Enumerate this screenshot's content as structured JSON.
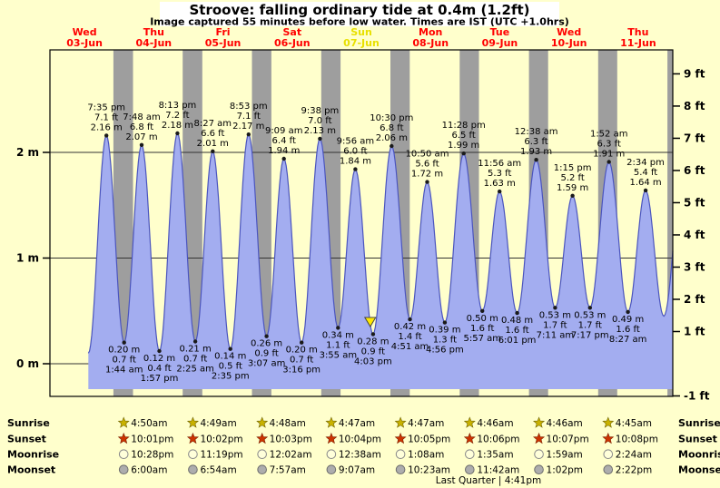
{
  "title": "Stroove: falling  ordinary tide at 0.4m (1.2ft)",
  "subtitle": "Image captured 55 minutes before low water. Times are IST (UTC +1.0hrs)",
  "colors": {
    "background": "#ffffcc",
    "title_box": "#ffffff",
    "night_band": "#9e9e9e",
    "tide_fill": "#a3adf0",
    "tide_stroke": "#4b55be",
    "day_label": "#ff0000",
    "current_day_label": "#e8e000",
    "marker": "#ffe800",
    "sunrise_icon": "#c9b200",
    "sunset_icon": "#cc3300",
    "moonrise_icon": "#ffffda",
    "moonset_icon": "#adadad"
  },
  "chart_data": {
    "type": "area",
    "x_axis": {
      "hours_total": 216,
      "start_day": "Wed 03-Jun 00:00",
      "end_day": "Thu 11-Jun 24:00"
    },
    "days": [
      {
        "name": "Wed",
        "date": "03-Jun",
        "current": false
      },
      {
        "name": "Thu",
        "date": "04-Jun",
        "current": false
      },
      {
        "name": "Fri",
        "date": "05-Jun",
        "current": false
      },
      {
        "name": "Sat",
        "date": "06-Jun",
        "current": false
      },
      {
        "name": "Sun",
        "date": "07-Jun",
        "current": true
      },
      {
        "name": "Mon",
        "date": "08-Jun",
        "current": false
      },
      {
        "name": "Tue",
        "date": "09-Jun",
        "current": false
      },
      {
        "name": "Wed",
        "date": "10-Jun",
        "current": false
      },
      {
        "name": "Thu",
        "date": "11-Jun",
        "current": false
      }
    ],
    "y_axis_left": {
      "unit": "m",
      "ticks": [
        {
          "m": 0,
          "label": "0 m"
        },
        {
          "m": 1,
          "label": "1 m"
        },
        {
          "m": 2,
          "label": "2 m"
        }
      ]
    },
    "y_axis_right": {
      "unit": "ft",
      "ticks": [
        {
          "ft": 9,
          "label": "9 ft"
        },
        {
          "ft": 8,
          "label": "8 ft"
        },
        {
          "ft": 7,
          "label": "7 ft"
        },
        {
          "ft": 6,
          "label": "6 ft"
        },
        {
          "ft": 5,
          "label": "5 ft"
        },
        {
          "ft": 4,
          "label": "4 ft"
        },
        {
          "ft": 3,
          "label": "3 ft"
        },
        {
          "ft": 2,
          "label": "2 ft"
        },
        {
          "ft": 1,
          "label": "1 ft"
        },
        {
          "ft": -1,
          "label": "-1 ft"
        }
      ]
    },
    "fill_bottom_m": -0.24,
    "night_bands": [
      [
        22.02,
        28.83
      ],
      [
        46.03,
        52.82
      ],
      [
        70.05,
        76.8
      ],
      [
        94.07,
        100.78
      ],
      [
        118.08,
        124.78
      ],
      [
        142.1,
        148.77
      ],
      [
        166.12,
        172.77
      ],
      [
        190.13,
        196.75
      ],
      [
        214.13,
        216
      ]
    ],
    "current_marker": {
      "t_hours": 111.1
    },
    "tide_events": [
      {
        "t": 13.33,
        "m": 0.1,
        "type": "low",
        "label": null
      },
      {
        "t": 19.58,
        "m": 2.16,
        "type": "high",
        "label": [
          "7:35 pm",
          "7.1 ft",
          "2.16 m"
        ]
      },
      {
        "t": 25.73,
        "m": 0.2,
        "type": "low",
        "label": [
          "0.20 m",
          "0.7 ft",
          "1:44 am"
        ]
      },
      {
        "t": 31.8,
        "m": 2.07,
        "type": "high",
        "label": [
          "7:48 am",
          "6.8 ft",
          "2.07 m"
        ]
      },
      {
        "t": 37.95,
        "m": 0.12,
        "type": "low",
        "label": [
          "0.12 m",
          "0.4 ft",
          "1:57 pm"
        ]
      },
      {
        "t": 44.22,
        "m": 2.18,
        "type": "high",
        "label": [
          "8:13 pm",
          "7.2 ft",
          "2.18 m"
        ]
      },
      {
        "t": 50.42,
        "m": 0.21,
        "type": "low",
        "label": [
          "0.21 m",
          "0.7 ft",
          "2:25 am"
        ]
      },
      {
        "t": 56.45,
        "m": 2.01,
        "type": "high",
        "label": [
          "8:27 am",
          "6.6 ft",
          "2.01 m"
        ]
      },
      {
        "t": 62.58,
        "m": 0.14,
        "type": "low",
        "label": [
          "0.14 m",
          "0.5 ft",
          "2:35 pm"
        ]
      },
      {
        "t": 68.88,
        "m": 2.17,
        "type": "high",
        "label": [
          "8:53 pm",
          "7.1 ft",
          "2.17 m"
        ]
      },
      {
        "t": 75.12,
        "m": 0.26,
        "type": "low",
        "label": [
          "0.26 m",
          "0.9 ft",
          "3:07 am"
        ]
      },
      {
        "t": 81.15,
        "m": 1.94,
        "type": "high",
        "label": [
          "9:09 am",
          "6.4 ft",
          "1.94 m"
        ]
      },
      {
        "t": 87.27,
        "m": 0.2,
        "type": "low",
        "label": [
          "0.20 m",
          "0.7 ft",
          "3:16 pm"
        ]
      },
      {
        "t": 93.63,
        "m": 2.13,
        "type": "high",
        "label": [
          "9:38 pm",
          "7.0 ft",
          "2.13 m"
        ]
      },
      {
        "t": 99.92,
        "m": 0.34,
        "type": "low",
        "label": [
          "0.34 m",
          "1.1 ft",
          "3:55 am"
        ]
      },
      {
        "t": 105.93,
        "m": 1.84,
        "type": "high",
        "label": [
          "9:56 am",
          "6.0 ft",
          "1.84 m"
        ]
      },
      {
        "t": 112.05,
        "m": 0.28,
        "type": "low",
        "label": [
          "0.28 m",
          "0.9 ft",
          "4:03 pm"
        ]
      },
      {
        "t": 118.5,
        "m": 2.06,
        "type": "high",
        "label": [
          "10:30 pm",
          "6.8 ft",
          "2.06 m"
        ]
      },
      {
        "t": 124.85,
        "m": 0.42,
        "type": "low",
        "label": [
          "0.42 m",
          "1.4 ft",
          "4:51 am"
        ]
      },
      {
        "t": 130.83,
        "m": 1.72,
        "type": "high",
        "label": [
          "10:50 am",
          "5.6 ft",
          "1.72 m"
        ]
      },
      {
        "t": 136.93,
        "m": 0.39,
        "type": "low",
        "label": [
          "0.39 m",
          "1.3 ft",
          "4:56 pm"
        ]
      },
      {
        "t": 143.47,
        "m": 1.99,
        "type": "high",
        "label": [
          "11:28 pm",
          "6.5 ft",
          "1.99 m"
        ]
      },
      {
        "t": 149.95,
        "m": 0.5,
        "type": "low",
        "label": [
          "0.50 m",
          "1.6 ft",
          "5:57 am"
        ]
      },
      {
        "t": 155.93,
        "m": 1.63,
        "type": "high",
        "label": [
          "11:56 am",
          "5.3 ft",
          "1.63 m"
        ]
      },
      {
        "t": 162.02,
        "m": 0.48,
        "type": "low",
        "label": [
          "0.48 m",
          "1.6 ft",
          "6:01 pm"
        ]
      },
      {
        "t": 168.63,
        "m": 1.93,
        "type": "high",
        "label": [
          "12:38 am",
          "6.3 ft",
          "1.93 m"
        ]
      },
      {
        "t": 175.18,
        "m": 0.53,
        "type": "low",
        "label": [
          "0.53 m",
          "1.7 ft",
          "7:11 am"
        ]
      },
      {
        "t": 181.25,
        "m": 1.59,
        "type": "high",
        "label": [
          "1:15 pm",
          "5.2 ft",
          "1.59 m"
        ]
      },
      {
        "t": 187.28,
        "m": 0.53,
        "type": "low",
        "label": [
          "0.53 m",
          "1.7 ft",
          "7:17 pm"
        ]
      },
      {
        "t": 193.87,
        "m": 1.91,
        "type": "high",
        "label": [
          "1:52 am",
          "6.3 ft",
          "1.91 m"
        ]
      },
      {
        "t": 200.45,
        "m": 0.49,
        "type": "low",
        "label": [
          "0.49 m",
          "1.6 ft",
          "8:27 am"
        ]
      },
      {
        "t": 206.57,
        "m": 1.64,
        "type": "high",
        "label": [
          "2:34 pm",
          "5.4 ft",
          "1.64 m"
        ]
      },
      {
        "t": 212.9,
        "m": 0.45,
        "type": "low",
        "label": null
      },
      {
        "t": 219.9,
        "m": 1.95,
        "type": "high",
        "label": null
      }
    ]
  },
  "almanac": {
    "rows": [
      {
        "key": "sunrise",
        "label": "Sunrise",
        "icon": "sunrise-star-icon",
        "times": [
          "4:50am",
          "4:49am",
          "4:48am",
          "4:47am",
          "4:47am",
          "4:46am",
          "4:46am",
          "4:45am"
        ]
      },
      {
        "key": "sunset",
        "label": "Sunset",
        "icon": "sunset-star-icon",
        "times": [
          "10:01pm",
          "10:02pm",
          "10:03pm",
          "10:04pm",
          "10:05pm",
          "10:06pm",
          "10:07pm",
          "10:08pm"
        ]
      },
      {
        "key": "moonrise",
        "label": "Moonrise",
        "icon": "moonrise-circle-icon",
        "times": [
          "10:28pm",
          "11:19pm",
          "12:02am",
          "12:38am",
          "1:08am",
          "1:35am",
          "1:59am",
          "2:24am"
        ]
      },
      {
        "key": "moonset",
        "label": "Moonset",
        "icon": "moonset-circle-icon",
        "times": [
          "6:00am",
          "6:54am",
          "7:57am",
          "9:07am",
          "10:23am",
          "11:42am",
          "1:02pm",
          "2:22pm"
        ]
      }
    ],
    "moon_phase": "Last Quarter | 4:41pm"
  }
}
